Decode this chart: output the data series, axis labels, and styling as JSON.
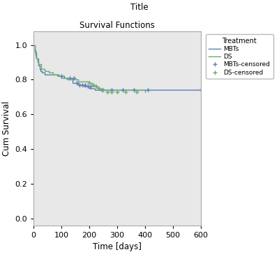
{
  "title": "Title",
  "subtitle": "Survival Functions",
  "xlabel": "Time [days]",
  "ylabel": "Cum Survival",
  "legend_title": "Treatment",
  "xlim": [
    0,
    600
  ],
  "ylim": [
    -0.04,
    1.08
  ],
  "xticks": [
    0,
    100,
    200,
    300,
    400,
    500,
    600
  ],
  "yticks": [
    0.0,
    0.2,
    0.4,
    0.6,
    0.8,
    1.0
  ],
  "fig_bg_color": "#ffffff",
  "plot_bg_color": "#e8e8e8",
  "mbts_color": "#5a7db5",
  "ds_color": "#6aaa6a",
  "mbts_step_x": [
    0,
    4,
    7,
    11,
    14,
    18,
    22,
    26,
    30,
    35,
    40,
    50,
    60,
    70,
    80,
    90,
    100,
    110,
    120,
    140,
    160,
    180,
    200,
    220,
    240,
    600
  ],
  "mbts_step_y": [
    1.0,
    0.97,
    0.94,
    0.92,
    0.9,
    0.88,
    0.86,
    0.85,
    0.84,
    0.84,
    0.83,
    0.83,
    0.83,
    0.83,
    0.83,
    0.82,
    0.82,
    0.81,
    0.81,
    0.78,
    0.77,
    0.76,
    0.75,
    0.74,
    0.74,
    0.74
  ],
  "ds_step_x": [
    0,
    5,
    10,
    18,
    28,
    40,
    55,
    70,
    85,
    100,
    120,
    140,
    160,
    180,
    195,
    200,
    210,
    220,
    230,
    240,
    400
  ],
  "ds_step_y": [
    1.0,
    0.96,
    0.92,
    0.89,
    0.86,
    0.85,
    0.84,
    0.83,
    0.82,
    0.81,
    0.8,
    0.8,
    0.79,
    0.79,
    0.79,
    0.78,
    0.77,
    0.76,
    0.75,
    0.74,
    0.73
  ],
  "mbts_censored_x": [
    100,
    130,
    145,
    155,
    165,
    175,
    185,
    195,
    205,
    245,
    280,
    320,
    360,
    410,
    600
  ],
  "mbts_censored_y": [
    0.82,
    0.81,
    0.81,
    0.78,
    0.77,
    0.77,
    0.77,
    0.76,
    0.76,
    0.74,
    0.74,
    0.74,
    0.74,
    0.74,
    0.74
  ],
  "ds_censored_x": [
    200,
    215,
    225,
    235,
    250,
    265,
    280,
    300,
    330,
    370
  ],
  "ds_censored_y": [
    0.78,
    0.77,
    0.76,
    0.75,
    0.74,
    0.73,
    0.73,
    0.73,
    0.73,
    0.73
  ]
}
